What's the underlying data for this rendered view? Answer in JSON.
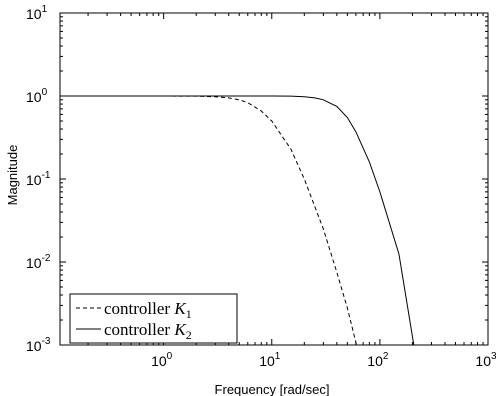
{
  "chart_data": {
    "type": "line",
    "xlabel": "Frequency [rad/sec]",
    "ylabel": "Magnitude",
    "xscale": "log",
    "yscale": "log",
    "xlim": [
      0.11,
      1000
    ],
    "ylim": [
      0.001,
      10
    ],
    "grid": false,
    "legend_placement": "bottom-left",
    "x_ticks": [
      {
        "base": "10",
        "exp": "0",
        "value": 1
      },
      {
        "base": "10",
        "exp": "1",
        "value": 10
      },
      {
        "base": "10",
        "exp": "2",
        "value": 100
      },
      {
        "base": "10",
        "exp": "3",
        "value": 1000
      }
    ],
    "y_ticks": [
      {
        "base": "10",
        "exp": "-3",
        "value": 0.001
      },
      {
        "base": "10",
        "exp": "-2",
        "value": 0.01
      },
      {
        "base": "10",
        "exp": "-1",
        "value": 0.1
      },
      {
        "base": "10",
        "exp": "0",
        "value": 1
      },
      {
        "base": "10",
        "exp": "1",
        "value": 10
      }
    ],
    "series": [
      {
        "name": "controller K_1",
        "legend_text": "controller ",
        "legend_symbol": "K",
        "legend_sub": "1",
        "style": "dashed",
        "color": "#000000",
        "x": [
          0.11,
          0.5,
          1,
          2,
          3,
          4,
          5,
          6,
          8,
          10,
          15,
          20,
          30,
          40,
          50,
          60.8
        ],
        "y": [
          1,
          1,
          1,
          0.995,
          0.98,
          0.95,
          0.9,
          0.83,
          0.66,
          0.5,
          0.23,
          0.1,
          0.025,
          0.0075,
          0.0028,
          0.001
        ]
      },
      {
        "name": "controller K_2",
        "legend_text": "controller ",
        "legend_symbol": "K",
        "legend_sub": "2",
        "style": "solid",
        "color": "#000000",
        "x": [
          0.11,
          1,
          10,
          15,
          20,
          25,
          30,
          40,
          50,
          60,
          80,
          100,
          150,
          206
        ],
        "y": [
          1,
          1,
          1,
          0.995,
          0.98,
          0.95,
          0.9,
          0.75,
          0.55,
          0.37,
          0.16,
          0.07,
          0.0125,
          0.001
        ]
      }
    ]
  }
}
